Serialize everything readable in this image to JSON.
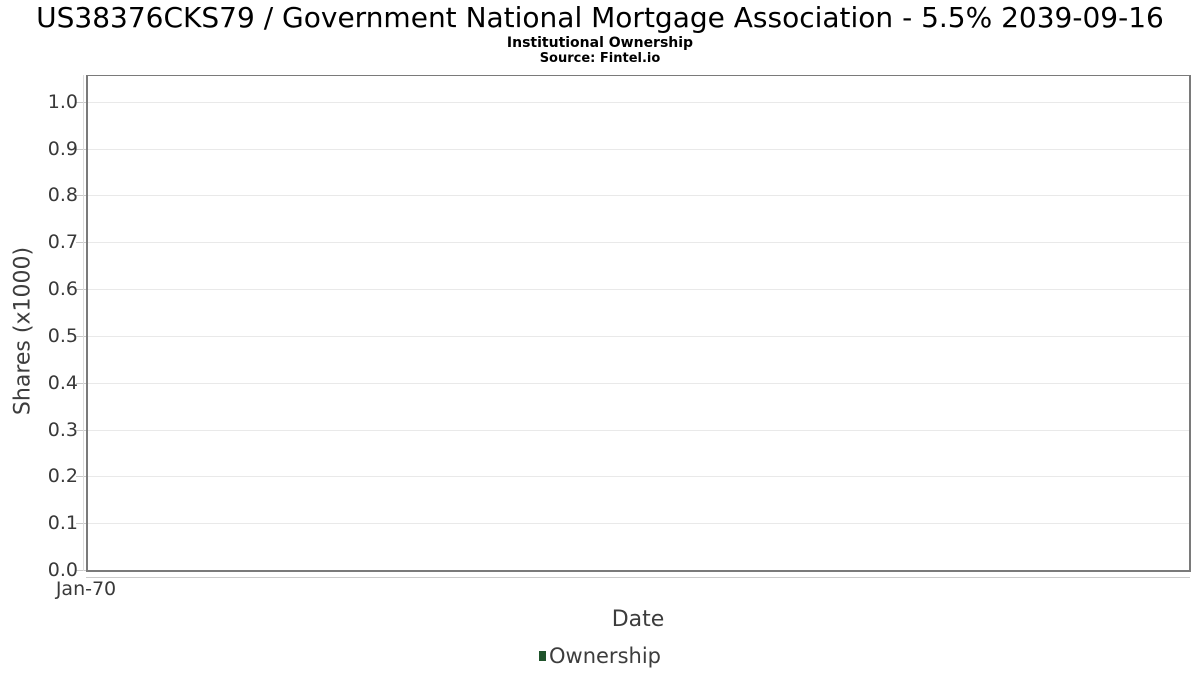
{
  "header": {
    "title": "US38376CKS79 / Government National Mortgage Association - 5.5% 2039-09-16",
    "subtitle": "Institutional Ownership",
    "source": "Source: Fintel.io"
  },
  "chart_data": {
    "type": "line",
    "title": "US38376CKS79 / Government National Mortgage Association - 5.5% 2039-09-16",
    "subtitle": "Institutional Ownership",
    "source": "Source: Fintel.io",
    "xlabel": "Date",
    "ylabel": "Shares (x1000)",
    "ylim": [
      0,
      1.055
    ],
    "y_ticks": {
      "values": [
        0.0,
        0.1,
        0.2,
        0.3,
        0.4,
        0.5,
        0.6,
        0.7,
        0.8,
        0.9,
        1.0
      ],
      "labels": [
        "0.0",
        "0.1",
        "0.2",
        "0.3",
        "0.4",
        "0.5",
        "0.6",
        "0.7",
        "0.8",
        "0.9",
        "1.0"
      ]
    },
    "x_ticks": [
      {
        "label": "Jan-70",
        "position": 0
      }
    ],
    "grid": true,
    "legend_position": "bottom-center",
    "series": [
      {
        "name": "Ownership",
        "color": "#20542c",
        "x": [],
        "values": []
      }
    ]
  },
  "legend": {
    "items": [
      {
        "label": "Ownership",
        "color": "#20542c"
      }
    ]
  }
}
